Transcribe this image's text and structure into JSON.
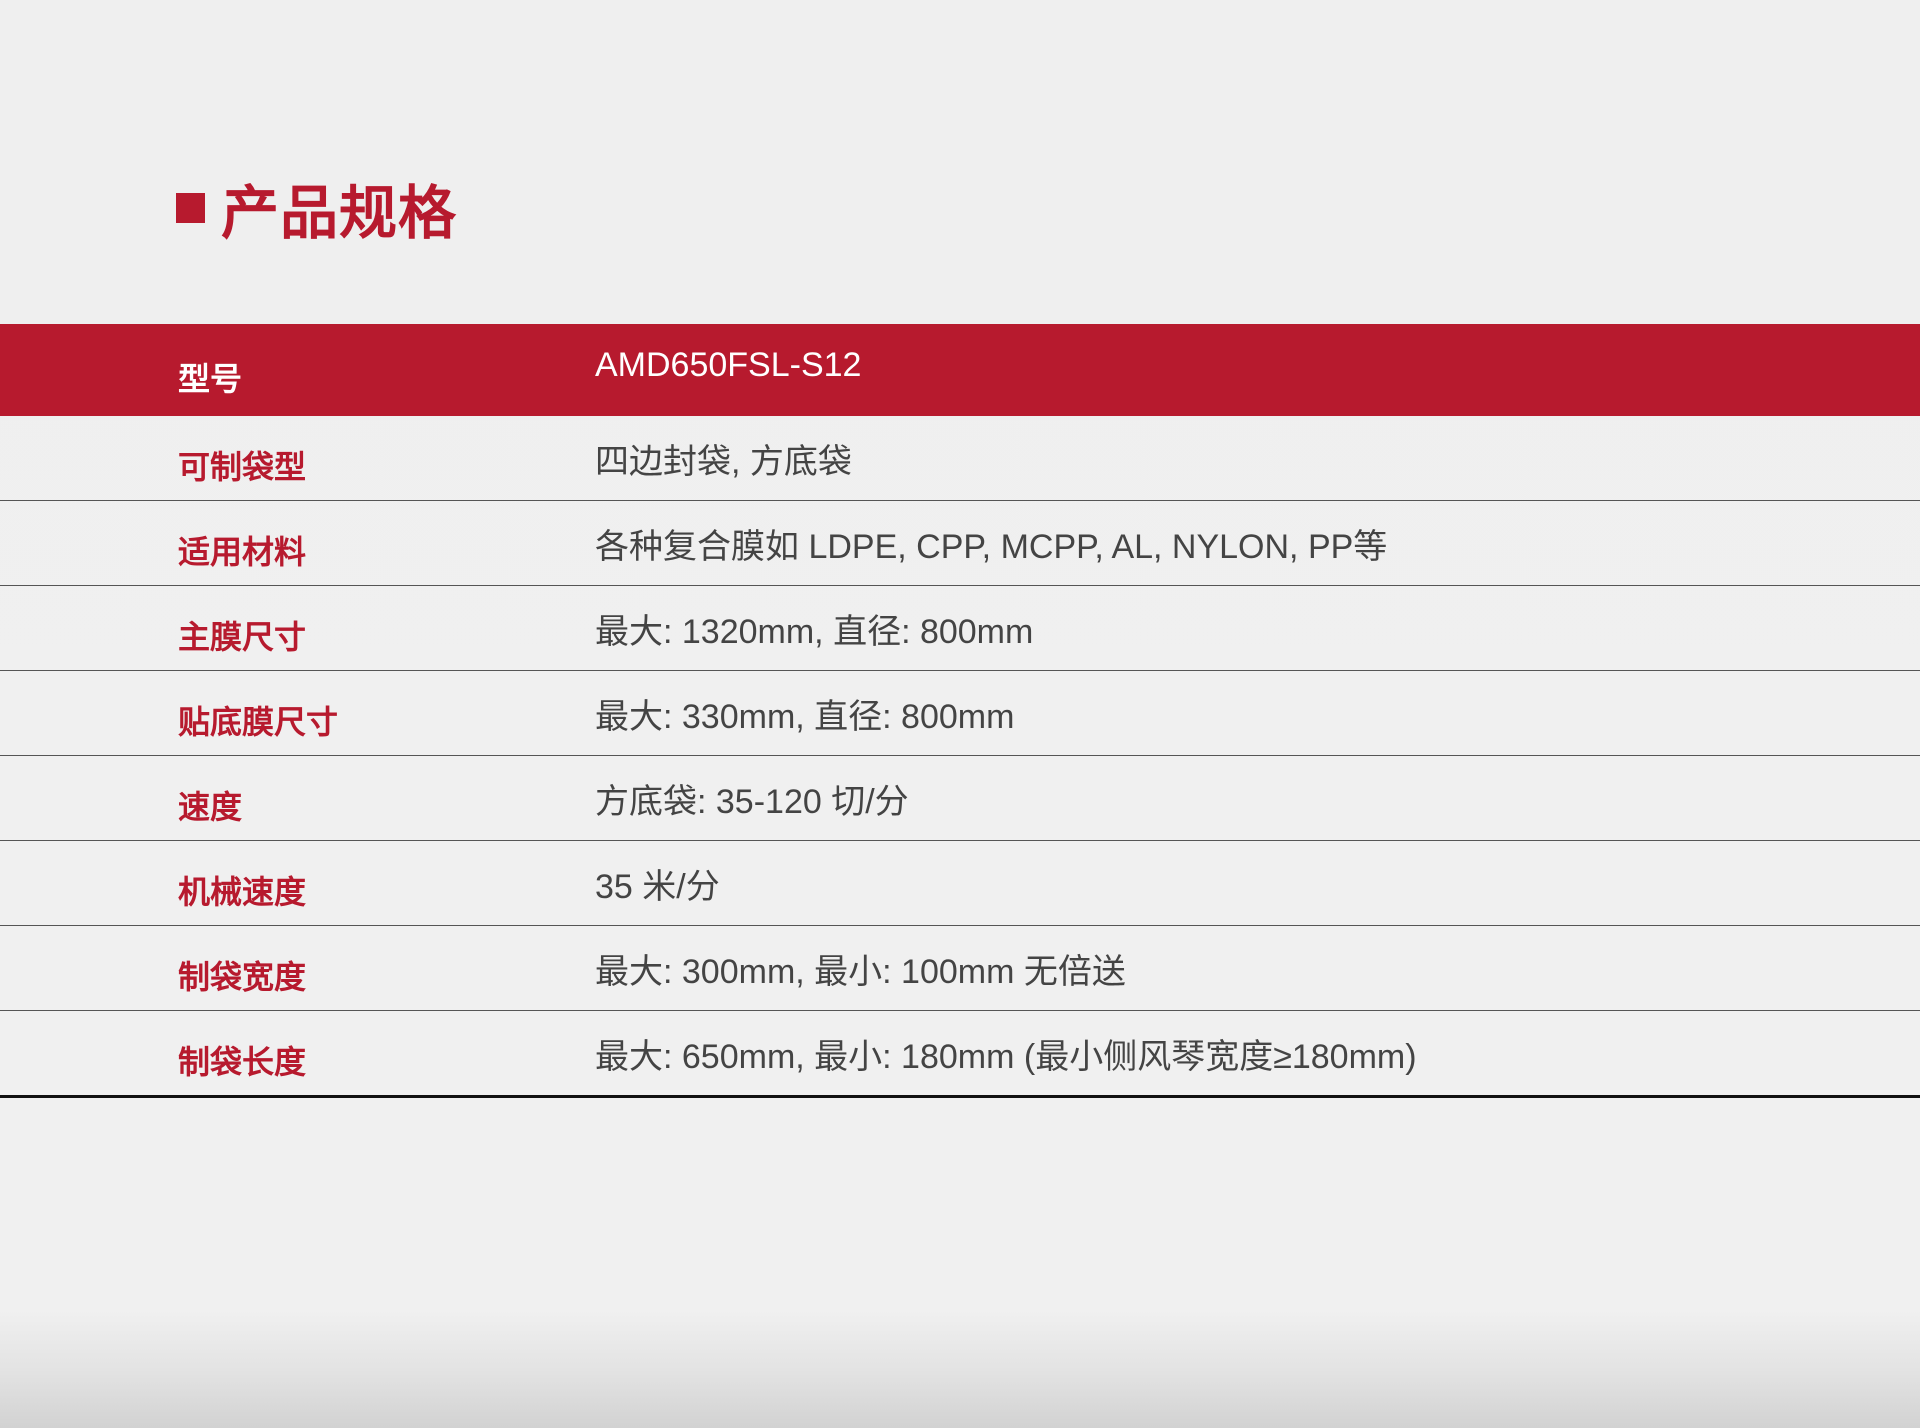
{
  "section_title": "产品规格",
  "colors": {
    "accent": "#b71a2e",
    "value_text": "#444444"
  },
  "specs": [
    {
      "label": "型号",
      "value": "AMD650FSL-S12"
    },
    {
      "label": "可制袋型",
      "value": "四边封袋, 方底袋"
    },
    {
      "label": "适用材料",
      "value": "各种复合膜如 LDPE, CPP, MCPP, AL, NYLON, PP等"
    },
    {
      "label": "主膜尺寸",
      "value": "最大: 1320mm, 直径: 800mm"
    },
    {
      "label": "贴底膜尺寸",
      "value": "最大: 330mm, 直径: 800mm"
    },
    {
      "label": "速度",
      "value": "方底袋: 35-120 切/分"
    },
    {
      "label": "机械速度",
      "value": "35 米/分"
    },
    {
      "label": "制袋宽度",
      "value": "最大: 300mm, 最小: 100mm  无倍送"
    },
    {
      "label": "制袋长度",
      "value": "最大: 650mm, 最小: 180mm (最小侧风琴宽度≥180mm)"
    }
  ]
}
